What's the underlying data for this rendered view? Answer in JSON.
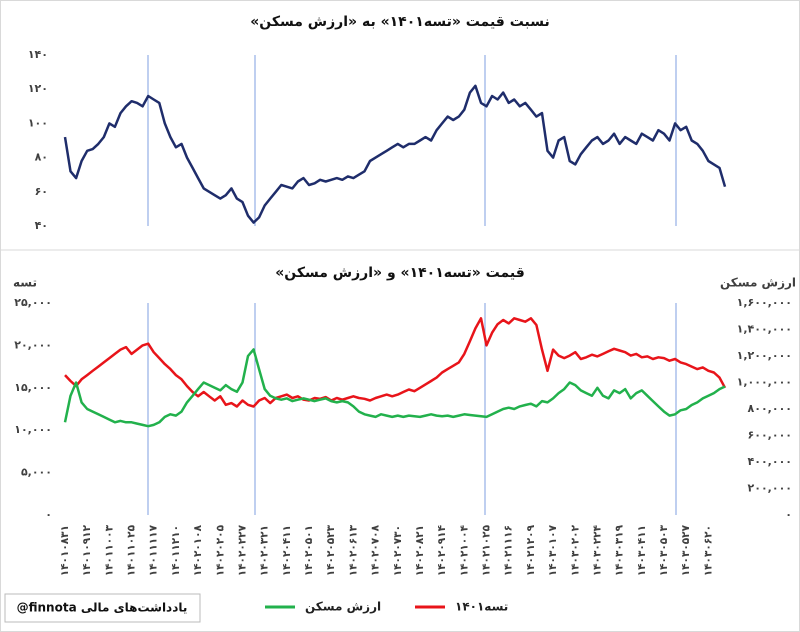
{
  "chart_data": [
    {
      "type": "line",
      "title": "نسبت قیمت «تسه۱۴۰۱» به «ارزش مسکن»",
      "series": [
        {
          "color": "#1f2d6b",
          "values": [
            92,
            72,
            68,
            78,
            84,
            85,
            88,
            92,
            100,
            98,
            106,
            110,
            113,
            112,
            110,
            116,
            114,
            112,
            100,
            92,
            86,
            88,
            80,
            74,
            68,
            62,
            60,
            58,
            56,
            58,
            62,
            56,
            54,
            46,
            42,
            45,
            52,
            56,
            60,
            64,
            63,
            62,
            66,
            68,
            64,
            65,
            67,
            66,
            67,
            68,
            67,
            69,
            68,
            70,
            72,
            78,
            80,
            82,
            84,
            86,
            88,
            86,
            88,
            88,
            90,
            92,
            90,
            96,
            100,
            104,
            102,
            104,
            108,
            118,
            122,
            112,
            110,
            116,
            114,
            118,
            112,
            114,
            110,
            112,
            108,
            104,
            106,
            84,
            80,
            90,
            92,
            78,
            76,
            82,
            86,
            90,
            92,
            88,
            90,
            94,
            88,
            92,
            90,
            88,
            94,
            92,
            90,
            96,
            94,
            90,
            100,
            96,
            98,
            90,
            88,
            84,
            78,
            76,
            74,
            63
          ]
        }
      ],
      "ylim": [
        40,
        140
      ],
      "yticks": [
        {
          "value": 40,
          "label": "۴۰"
        },
        {
          "value": 60,
          "label": "۶۰"
        },
        {
          "value": 80,
          "label": "۸۰"
        },
        {
          "value": 100,
          "label": "۱۰۰"
        },
        {
          "value": 120,
          "label": "۱۲۰"
        },
        {
          "value": 140,
          "label": "۱۴۰"
        }
      ]
    },
    {
      "type": "line",
      "title": "قیمت «تسه۱۴۰۱» و «ارزش مسکن»",
      "ylabel": "تسه",
      "y2label": "ارزش مسکن",
      "categories": [
        "۱۴۰۱۰۸۳۱",
        null,
        null,
        null,
        "۱۴۰۱۰۹۱۲",
        null,
        null,
        null,
        "۱۴۰۱۱۰۰۳",
        null,
        null,
        null,
        "۱۴۰۱۱۰۲۵",
        null,
        null,
        null,
        "۱۴۰۱۱۱۱۷",
        null,
        null,
        null,
        "۱۴۰۱۱۲۱۰",
        null,
        null,
        null,
        "۱۴۰۲۰۱۰۸",
        null,
        null,
        null,
        "۱۴۰۲۰۲۰۵",
        null,
        null,
        null,
        "۱۴۰۲۰۲۲۷",
        null,
        null,
        null,
        "۱۴۰۲۰۳۲۱",
        null,
        null,
        null,
        "۱۴۰۲۰۴۱۱",
        null,
        null,
        null,
        "۱۴۰۲۰۵۰۱",
        null,
        null,
        null,
        "۱۴۰۲۰۵۲۳",
        null,
        null,
        null,
        "۱۴۰۲۰۶۱۳",
        null,
        null,
        null,
        "۱۴۰۲۰۷۰۸",
        null,
        null,
        null,
        "۱۴۰۲۰۷۳۰",
        null,
        null,
        null,
        "۱۴۰۲۰۸۲۱",
        null,
        null,
        null,
        "۱۴۰۲۰۹۱۴",
        null,
        null,
        null,
        "۱۴۰۲۱۰۰۴",
        null,
        null,
        null,
        "۱۴۰۲۱۰۲۵",
        null,
        null,
        null,
        "۱۴۰۲۱۱۱۶",
        null,
        null,
        null,
        "۱۴۰۲۱۲۰۹",
        null,
        null,
        null,
        "۱۴۰۳۰۱۰۷",
        null,
        null,
        null,
        "۱۴۰۳۰۲۰۲",
        null,
        null,
        null,
        "۱۴۰۳۰۲۲۴",
        null,
        null,
        null,
        "۱۴۰۳۰۳۱۹",
        null,
        null,
        null,
        "۱۴۰۳۰۴۱۱",
        null,
        null,
        null,
        "۱۴۰۳۰۵۰۳",
        null,
        null,
        null,
        "۱۴۰۳۰۵۲۷",
        null,
        null,
        null,
        "۱۴۰۳۰۶۲۰",
        null,
        null,
        null
      ],
      "series": [
        {
          "name": "تسه۱۴۰۱",
          "color": "#e8141a",
          "values": [
            16500,
            15800,
            15200,
            16000,
            16500,
            17000,
            17500,
            18000,
            18500,
            19000,
            19500,
            19800,
            19000,
            19500,
            20000,
            20200,
            19200,
            18500,
            17800,
            17200,
            16500,
            16000,
            15200,
            14500,
            14000,
            14500,
            14000,
            13500,
            14000,
            13000,
            13200,
            12800,
            13500,
            13000,
            12800,
            13500,
            13800,
            13200,
            13800,
            14000,
            14200,
            13800,
            14000,
            13600,
            13500,
            13800,
            13700,
            13900,
            13500,
            13800,
            13600,
            13800,
            14000,
            13800,
            13700,
            13500,
            13800,
            14000,
            14200,
            14000,
            14200,
            14500,
            14800,
            14600,
            15000,
            15400,
            15800,
            16200,
            16800,
            17200,
            17600,
            18000,
            19000,
            20500,
            22000,
            23200,
            20000,
            21500,
            22500,
            23000,
            22600,
            23200,
            23000,
            22800,
            23200,
            22400,
            19500,
            17000,
            19500,
            18800,
            18500,
            18800,
            19200,
            18400,
            18600,
            18900,
            18700,
            19000,
            19300,
            19600,
            19400,
            19200,
            18800,
            19000,
            18600,
            18700,
            18400,
            18600,
            18500,
            18200,
            18400,
            18000,
            17800,
            17500,
            17200,
            17400,
            17000,
            16800,
            16200,
            15000
          ]
        },
        {
          "name": "ارزش مسکن",
          "color": "#22b14c",
          "axis": "y2",
          "values": [
            700000,
            900000,
            1000000,
            850000,
            800000,
            780000,
            760000,
            740000,
            720000,
            700000,
            710000,
            700000,
            700000,
            690000,
            680000,
            670000,
            680000,
            700000,
            740000,
            760000,
            750000,
            780000,
            850000,
            900000,
            950000,
            1000000,
            980000,
            960000,
            940000,
            980000,
            950000,
            930000,
            1000000,
            1200000,
            1250000,
            1100000,
            950000,
            900000,
            880000,
            870000,
            880000,
            860000,
            870000,
            880000,
            870000,
            860000,
            870000,
            880000,
            860000,
            850000,
            860000,
            850000,
            820000,
            780000,
            760000,
            750000,
            740000,
            760000,
            750000,
            740000,
            750000,
            740000,
            750000,
            745000,
            740000,
            750000,
            760000,
            750000,
            745000,
            750000,
            740000,
            750000,
            760000,
            755000,
            750000,
            745000,
            740000,
            760000,
            780000,
            800000,
            810000,
            800000,
            820000,
            830000,
            840000,
            820000,
            860000,
            850000,
            880000,
            920000,
            950000,
            1000000,
            980000,
            940000,
            920000,
            900000,
            960000,
            900000,
            880000,
            940000,
            920000,
            950000,
            880000,
            920000,
            940000,
            900000,
            860000,
            820000,
            780000,
            750000,
            760000,
            790000,
            800000,
            830000,
            850000,
            880000,
            900000,
            920000,
            950000,
            970000
          ]
        }
      ],
      "ylim": [
        0,
        25000
      ],
      "yticks": [
        {
          "value": 0,
          "label": "۰"
        },
        {
          "value": 5000,
          "label": "۵,۰۰۰"
        },
        {
          "value": 10000,
          "label": "۱۰,۰۰۰"
        },
        {
          "value": 15000,
          "label": "۱۵,۰۰۰"
        },
        {
          "value": 20000,
          "label": "۲۰,۰۰۰"
        },
        {
          "value": 25000,
          "label": "۲۵,۰۰۰"
        }
      ],
      "y2lim": [
        0,
        1600000
      ],
      "y2ticks": [
        {
          "value": 0,
          "label": "۰"
        },
        {
          "value": 200000,
          "label": "۲۰۰,۰۰۰"
        },
        {
          "value": 400000,
          "label": "۴۰۰,۰۰۰"
        },
        {
          "value": 600000,
          "label": "۶۰۰,۰۰۰"
        },
        {
          "value": 800000,
          "label": "۸۰۰,۰۰۰"
        },
        {
          "value": 1000000,
          "label": "۱,۰۰۰,۰۰۰"
        },
        {
          "value": 1200000,
          "label": "۱,۲۰۰,۰۰۰"
        },
        {
          "value": 1400000,
          "label": "۱,۴۰۰,۰۰۰"
        },
        {
          "value": 1600000,
          "label": "۱,۶۰۰,۰۰۰"
        }
      ]
    }
  ],
  "footer": "@finnota یادداشت‌های مالی"
}
